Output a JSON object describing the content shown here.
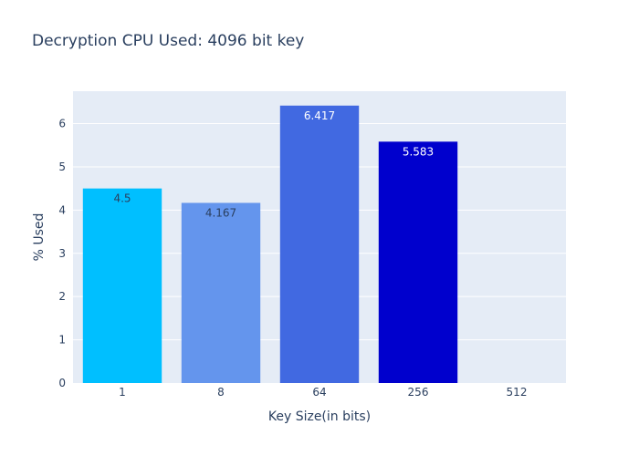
{
  "chart_data": {
    "type": "bar",
    "title": "Decryption CPU Used: 4096 bit key",
    "xlabel": "Key Size(in bits)",
    "ylabel": "% Used",
    "categories": [
      "1",
      "8",
      "64",
      "256",
      "512"
    ],
    "values": [
      4.5,
      4.167,
      6.417,
      5.583,
      0
    ],
    "data_labels": [
      "4.5",
      "4.167",
      "6.417",
      "5.583",
      ""
    ],
    "ylim": [
      0,
      6.75
    ],
    "yticks": [
      0,
      1,
      2,
      3,
      4,
      5,
      6
    ],
    "ytick_labels": [
      "0",
      "1",
      "2",
      "3",
      "4",
      "5",
      "6"
    ],
    "grid": true,
    "colors": {
      "bars": [
        "#00bfff",
        "#6495ed",
        "#4169e1",
        "#0000cd",
        "#00008b"
      ],
      "data_label_text": [
        "#2a3f5f",
        "#2a3f5f",
        "#ffffff",
        "#ffffff",
        "#2a3f5f"
      ],
      "plot_background": "#e5ecf6",
      "grid": "#ffffff",
      "text": "#2a3f5f",
      "tick_text": "#2a3f5f"
    }
  }
}
